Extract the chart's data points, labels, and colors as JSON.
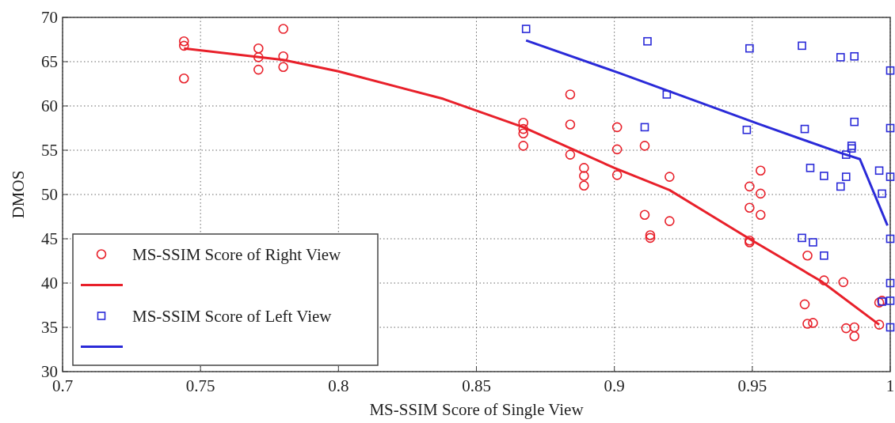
{
  "chart_data": {
    "type": "scatter",
    "xlabel": "MS-SSIM Score of Single View",
    "ylabel": "DMOS",
    "xlim": [
      0.7,
      1
    ],
    "ylim": [
      30,
      70
    ],
    "xticks": [
      0.7,
      0.75,
      0.8,
      0.85,
      0.9,
      0.95,
      1
    ],
    "yticks": [
      30,
      35,
      40,
      45,
      50,
      55,
      60,
      65,
      70
    ],
    "grid": true,
    "legend": "bottom left",
    "series": [
      {
        "name": "MS-SSIM Score of Right View",
        "marker": "circle",
        "color": "#e8202a",
        "x": [
          0.744,
          0.744,
          0.744,
          0.771,
          0.771,
          0.771,
          0.78,
          0.78,
          0.78,
          0.884,
          0.867,
          0.867,
          0.867,
          0.867,
          0.884,
          0.884,
          0.889,
          0.889,
          0.889,
          0.901,
          0.901,
          0.901,
          0.911,
          0.92,
          0.911,
          0.92,
          0.913,
          0.913,
          0.949,
          0.953,
          0.953,
          0.949,
          0.953,
          0.949,
          0.949,
          0.97,
          0.969,
          0.97,
          0.972,
          0.976,
          0.983,
          0.984,
          0.987,
          0.987,
          0.996,
          0.996,
          0.997
        ],
        "values": [
          67.3,
          66.8,
          63.1,
          66.5,
          65.5,
          64.1,
          68.7,
          65.6,
          64.4,
          61.3,
          58.1,
          57.4,
          56.9,
          55.5,
          57.9,
          54.5,
          53.0,
          52.1,
          51.0,
          57.6,
          55.1,
          52.2,
          55.5,
          52.0,
          47.7,
          47.0,
          45.4,
          45.1,
          50.9,
          52.7,
          50.1,
          48.5,
          47.7,
          44.8,
          44.6,
          43.1,
          37.6,
          35.4,
          35.5,
          40.3,
          40.1,
          34.9,
          35.0,
          34.0,
          35.3,
          37.8,
          38.0
        ]
      },
      {
        "type": "line",
        "color": "#e8202a",
        "x": [
          0.744,
          0.78,
          0.8,
          0.838,
          0.867,
          0.9,
          0.92,
          0.95,
          0.975,
          0.996
        ],
        "values": [
          66.5,
          65.2,
          63.9,
          60.8,
          57.6,
          53.0,
          50.5,
          44.8,
          40.2,
          35.3
        ]
      },
      {
        "name": "MS-SSIM Score of Left View",
        "marker": "square",
        "color": "#2a2ad8",
        "x": [
          0.868,
          0.912,
          0.949,
          0.968,
          0.982,
          0.987,
          0.919,
          0.911,
          0.948,
          0.969,
          0.987,
          0.986,
          0.986,
          0.984,
          0.971,
          0.976,
          0.984,
          0.982,
          0.996,
          0.997,
          0.968,
          0.972,
          0.976,
          0.997,
          1,
          1,
          1,
          1,
          1,
          1,
          1
        ],
        "values": [
          68.7,
          67.3,
          66.5,
          66.8,
          65.5,
          65.6,
          61.3,
          57.6,
          57.3,
          57.4,
          58.2,
          55.5,
          55.2,
          54.5,
          53.0,
          52.1,
          52.0,
          50.9,
          52.7,
          50.1,
          45.1,
          44.6,
          43.1,
          37.9,
          64,
          57.5,
          52,
          45,
          40,
          38,
          35
        ]
      },
      {
        "type": "line",
        "color": "#2a2ad8",
        "x": [
          0.868,
          0.902,
          0.952,
          0.982,
          0.989,
          0.999
        ],
        "values": [
          67.4,
          63.7,
          58.0,
          54.7,
          54.0,
          46.5
        ]
      }
    ]
  }
}
